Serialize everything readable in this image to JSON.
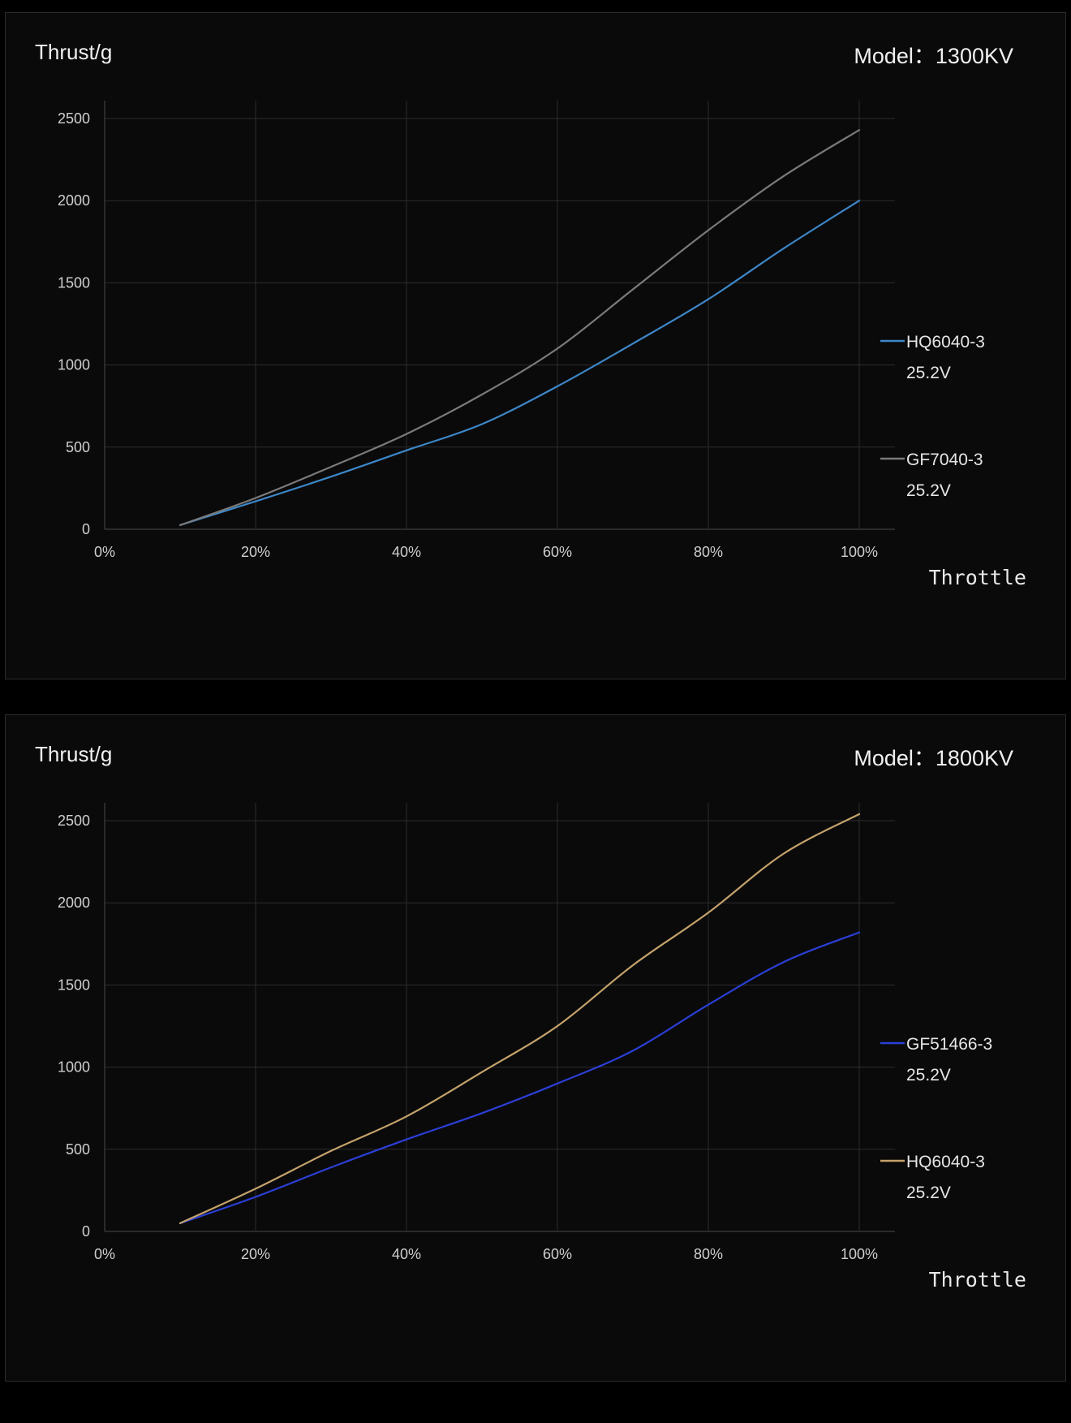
{
  "chart_data": [
    {
      "type": "line",
      "title": "Model：1300KV",
      "ylabel": "Thrust/g",
      "xlabel": "Throttle",
      "xlim": [
        0,
        100
      ],
      "ylim": [
        0,
        2500
      ],
      "x_ticks": [
        "0%",
        "20%",
        "40%",
        "60%",
        "80%",
        "100%"
      ],
      "y_ticks": [
        "0",
        "500",
        "1000",
        "1500",
        "2000",
        "2500"
      ],
      "grid": true,
      "legend_position": "right",
      "series": [
        {
          "name": "HQ6040-3",
          "subtitle": "25.2V",
          "color": "#3d86c6",
          "x": [
            10,
            20,
            30,
            40,
            50,
            60,
            70,
            80,
            90,
            100
          ],
          "y": [
            25,
            170,
            320,
            480,
            640,
            870,
            1130,
            1400,
            1710,
            2000
          ]
        },
        {
          "name": "GF7040-3",
          "subtitle": "25.2V",
          "color": "#7a7a7a",
          "x": [
            10,
            20,
            30,
            40,
            50,
            60,
            70,
            80,
            90,
            100
          ],
          "y": [
            25,
            190,
            380,
            580,
            820,
            1100,
            1460,
            1820,
            2150,
            2430
          ]
        }
      ]
    },
    {
      "type": "line",
      "title": "Model：1800KV",
      "ylabel": "Thrust/g",
      "xlabel": "Throttle",
      "xlim": [
        0,
        100
      ],
      "ylim": [
        0,
        2500
      ],
      "x_ticks": [
        "0%",
        "20%",
        "40%",
        "60%",
        "80%",
        "100%"
      ],
      "y_ticks": [
        "0",
        "500",
        "1000",
        "1500",
        "2000",
        "2500"
      ],
      "grid": true,
      "legend_position": "right",
      "series": [
        {
          "name": "GF51466-3",
          "subtitle": "25.2V",
          "color": "#2b3fd6",
          "x": [
            10,
            20,
            30,
            40,
            50,
            60,
            70,
            80,
            90,
            100
          ],
          "y": [
            50,
            210,
            390,
            560,
            720,
            900,
            1100,
            1380,
            1640,
            1820
          ]
        },
        {
          "name": "HQ6040-3",
          "subtitle": "25.2V",
          "color": "#c4a26a",
          "x": [
            10,
            20,
            30,
            40,
            50,
            60,
            70,
            80,
            90,
            100
          ],
          "y": [
            50,
            260,
            490,
            700,
            970,
            1250,
            1620,
            1940,
            2300,
            2540
          ]
        }
      ]
    }
  ]
}
